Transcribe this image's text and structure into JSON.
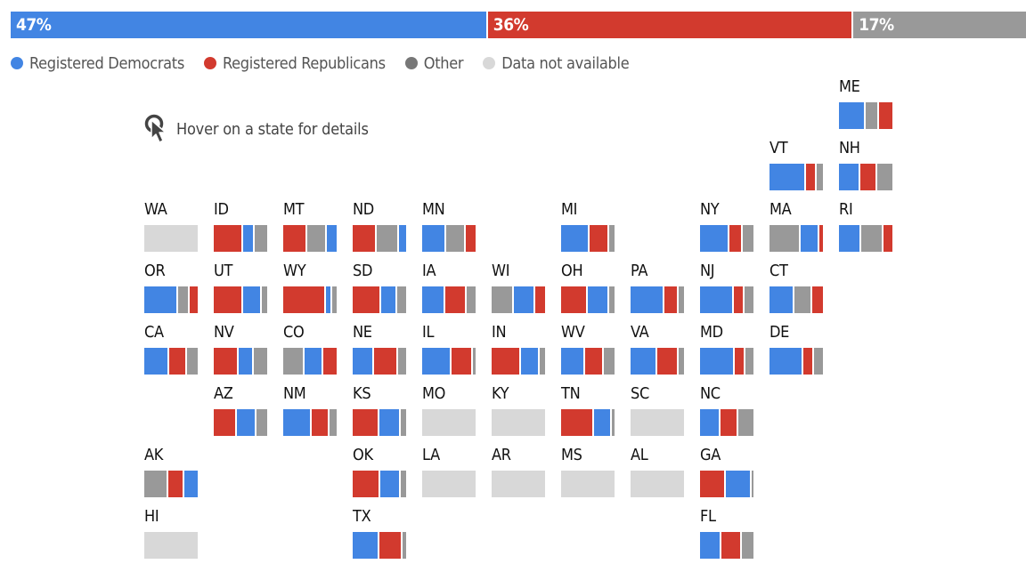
{
  "colors": {
    "democrats": "#4285e3",
    "republicans": "#d23a2e",
    "other": "#999999",
    "not_available": "#d8d8d8"
  },
  "chart_data": {
    "type": "bar",
    "summary": {
      "segments": [
        {
          "key": "democrats",
          "value": 47,
          "label": "47%"
        },
        {
          "key": "republicans",
          "value": 36,
          "label": "36%"
        },
        {
          "key": "other",
          "value": 17,
          "label": "17%"
        }
      ]
    },
    "legend": [
      {
        "key": "democrats",
        "label": "Registered Democrats"
      },
      {
        "key": "republicans",
        "label": "Registered Republicans"
      },
      {
        "key": "other",
        "label": "Other"
      },
      {
        "key": "not_available",
        "label": "Data not available"
      }
    ],
    "hover_hint": "Hover on a state for details",
    "states": [
      {
        "abbr": "ME",
        "col": 10,
        "row": 0,
        "segments": [
          [
            "democrats",
            50
          ],
          [
            "other",
            25
          ],
          [
            "republicans",
            25
          ]
        ]
      },
      {
        "abbr": "VT",
        "col": 9,
        "row": 1,
        "segments": [
          [
            "democrats",
            68
          ],
          [
            "republicans",
            20
          ],
          [
            "other",
            12
          ]
        ]
      },
      {
        "abbr": "NH",
        "col": 10,
        "row": 1,
        "segments": [
          [
            "democrats",
            40
          ],
          [
            "republicans",
            32
          ],
          [
            "other",
            28
          ]
        ]
      },
      {
        "abbr": "WA",
        "col": 0,
        "row": 2,
        "na": true
      },
      {
        "abbr": "ID",
        "col": 1,
        "row": 2,
        "segments": [
          [
            "republicans",
            55
          ],
          [
            "democrats",
            22
          ],
          [
            "other",
            23
          ]
        ]
      },
      {
        "abbr": "MT",
        "col": 2,
        "row": 2,
        "segments": [
          [
            "republicans",
            45
          ],
          [
            "other",
            37
          ],
          [
            "democrats",
            18
          ]
        ]
      },
      {
        "abbr": "ND",
        "col": 3,
        "row": 2,
        "segments": [
          [
            "republicans",
            45
          ],
          [
            "other",
            42
          ],
          [
            "democrats",
            13
          ]
        ]
      },
      {
        "abbr": "MN",
        "col": 4,
        "row": 2,
        "segments": [
          [
            "democrats",
            45
          ],
          [
            "other",
            37
          ],
          [
            "republicans",
            18
          ]
        ]
      },
      {
        "abbr": "MI",
        "col": 6,
        "row": 2,
        "segments": [
          [
            "democrats",
            53
          ],
          [
            "republicans",
            37
          ],
          [
            "other",
            10
          ]
        ]
      },
      {
        "abbr": "NY",
        "col": 8,
        "row": 2,
        "segments": [
          [
            "democrats",
            55
          ],
          [
            "republicans",
            25
          ],
          [
            "other",
            20
          ]
        ]
      },
      {
        "abbr": "MA",
        "col": 9,
        "row": 2,
        "segments": [
          [
            "other",
            58
          ],
          [
            "democrats",
            35
          ],
          [
            "republicans",
            7
          ]
        ]
      },
      {
        "abbr": "RI",
        "col": 10,
        "row": 2,
        "segments": [
          [
            "democrats",
            42
          ],
          [
            "other",
            42
          ],
          [
            "republicans",
            16
          ]
        ]
      },
      {
        "abbr": "OR",
        "col": 0,
        "row": 3,
        "segments": [
          [
            "democrats",
            63
          ],
          [
            "other",
            22
          ],
          [
            "republicans",
            15
          ]
        ]
      },
      {
        "abbr": "UT",
        "col": 1,
        "row": 3,
        "segments": [
          [
            "republicans",
            55
          ],
          [
            "democrats",
            35
          ],
          [
            "other",
            10
          ]
        ]
      },
      {
        "abbr": "WY",
        "col": 2,
        "row": 3,
        "segments": [
          [
            "republicans",
            80
          ],
          [
            "democrats",
            12
          ],
          [
            "other",
            8
          ]
        ]
      },
      {
        "abbr": "SD",
        "col": 3,
        "row": 3,
        "segments": [
          [
            "republicans",
            53
          ],
          [
            "democrats",
            30
          ],
          [
            "other",
            17
          ]
        ]
      },
      {
        "abbr": "IA",
        "col": 4,
        "row": 3,
        "segments": [
          [
            "democrats",
            43
          ],
          [
            "republicans",
            40
          ],
          [
            "other",
            17
          ]
        ]
      },
      {
        "abbr": "WI",
        "col": 5,
        "row": 3,
        "segments": [
          [
            "other",
            42
          ],
          [
            "democrats",
            40
          ],
          [
            "republicans",
            18
          ]
        ]
      },
      {
        "abbr": "OH",
        "col": 6,
        "row": 3,
        "segments": [
          [
            "republicans",
            50
          ],
          [
            "democrats",
            40
          ],
          [
            "other",
            10
          ]
        ]
      },
      {
        "abbr": "PA",
        "col": 7,
        "row": 3,
        "segments": [
          [
            "democrats",
            63
          ],
          [
            "republicans",
            27
          ],
          [
            "other",
            10
          ]
        ]
      },
      {
        "abbr": "NJ",
        "col": 8,
        "row": 3,
        "segments": [
          [
            "democrats",
            63
          ],
          [
            "republicans",
            20
          ],
          [
            "other",
            17
          ]
        ]
      },
      {
        "abbr": "CT",
        "col": 9,
        "row": 3,
        "segments": [
          [
            "democrats",
            47
          ],
          [
            "other",
            33
          ],
          [
            "republicans",
            20
          ]
        ]
      },
      {
        "abbr": "CA",
        "col": 0,
        "row": 4,
        "segments": [
          [
            "democrats",
            47
          ],
          [
            "republicans",
            33
          ],
          [
            "other",
            20
          ]
        ]
      },
      {
        "abbr": "NV",
        "col": 1,
        "row": 4,
        "segments": [
          [
            "republicans",
            47
          ],
          [
            "democrats",
            28
          ],
          [
            "other",
            25
          ]
        ]
      },
      {
        "abbr": "CO",
        "col": 2,
        "row": 4,
        "segments": [
          [
            "other",
            40
          ],
          [
            "democrats",
            35
          ],
          [
            "republicans",
            25
          ]
        ]
      },
      {
        "abbr": "NE",
        "col": 3,
        "row": 4,
        "segments": [
          [
            "democrats",
            40
          ],
          [
            "republicans",
            45
          ],
          [
            "other",
            15
          ]
        ]
      },
      {
        "abbr": "IL",
        "col": 4,
        "row": 4,
        "segments": [
          [
            "democrats",
            55
          ],
          [
            "republicans",
            40
          ],
          [
            "other",
            5
          ]
        ]
      },
      {
        "abbr": "IN",
        "col": 5,
        "row": 4,
        "segments": [
          [
            "republicans",
            55
          ],
          [
            "democrats",
            35
          ],
          [
            "other",
            10
          ]
        ]
      },
      {
        "abbr": "WV",
        "col": 6,
        "row": 4,
        "segments": [
          [
            "democrats",
            45
          ],
          [
            "republicans",
            35
          ],
          [
            "other",
            20
          ]
        ]
      },
      {
        "abbr": "VA",
        "col": 7,
        "row": 4,
        "segments": [
          [
            "democrats",
            50
          ],
          [
            "republicans",
            40
          ],
          [
            "other",
            10
          ]
        ]
      },
      {
        "abbr": "MD",
        "col": 8,
        "row": 4,
        "segments": [
          [
            "democrats",
            65
          ],
          [
            "republicans",
            20
          ],
          [
            "other",
            15
          ]
        ]
      },
      {
        "abbr": "DE",
        "col": 9,
        "row": 4,
        "segments": [
          [
            "democrats",
            63
          ],
          [
            "republicans",
            20
          ],
          [
            "other",
            17
          ]
        ]
      },
      {
        "abbr": "AZ",
        "col": 1,
        "row": 5,
        "segments": [
          [
            "republicans",
            43
          ],
          [
            "democrats",
            37
          ],
          [
            "other",
            20
          ]
        ]
      },
      {
        "abbr": "NM",
        "col": 2,
        "row": 5,
        "segments": [
          [
            "democrats",
            53
          ],
          [
            "republicans",
            33
          ],
          [
            "other",
            14
          ]
        ]
      },
      {
        "abbr": "KS",
        "col": 3,
        "row": 5,
        "segments": [
          [
            "republicans",
            50
          ],
          [
            "democrats",
            40
          ],
          [
            "other",
            10
          ]
        ]
      },
      {
        "abbr": "MO",
        "col": 4,
        "row": 5,
        "na": true
      },
      {
        "abbr": "KY",
        "col": 5,
        "row": 5,
        "na": true
      },
      {
        "abbr": "TN",
        "col": 6,
        "row": 5,
        "segments": [
          [
            "republicans",
            62
          ],
          [
            "democrats",
            33
          ],
          [
            "other",
            5
          ]
        ]
      },
      {
        "abbr": "SC",
        "col": 7,
        "row": 5,
        "na": true
      },
      {
        "abbr": "NC",
        "col": 8,
        "row": 5,
        "segments": [
          [
            "democrats",
            38
          ],
          [
            "republicans",
            33
          ],
          [
            "other",
            29
          ]
        ]
      },
      {
        "abbr": "AK",
        "col": 0,
        "row": 6,
        "segments": [
          [
            "other",
            45
          ],
          [
            "republicans",
            30
          ],
          [
            "democrats",
            25
          ]
        ]
      },
      {
        "abbr": "OK",
        "col": 3,
        "row": 6,
        "segments": [
          [
            "republicans",
            52
          ],
          [
            "democrats",
            38
          ],
          [
            "other",
            10
          ]
        ]
      },
      {
        "abbr": "LA",
        "col": 4,
        "row": 6,
        "na": true
      },
      {
        "abbr": "AR",
        "col": 5,
        "row": 6,
        "na": true
      },
      {
        "abbr": "MS",
        "col": 6,
        "row": 6,
        "na": true
      },
      {
        "abbr": "AL",
        "col": 7,
        "row": 6,
        "na": true
      },
      {
        "abbr": "GA",
        "col": 8,
        "row": 6,
        "segments": [
          [
            "republicans",
            48
          ],
          [
            "democrats",
            48
          ],
          [
            "other",
            4
          ]
        ]
      },
      {
        "abbr": "HI",
        "col": 0,
        "row": 7,
        "na": true
      },
      {
        "abbr": "TX",
        "col": 3,
        "row": 7,
        "segments": [
          [
            "democrats",
            50
          ],
          [
            "republicans",
            43
          ],
          [
            "other",
            7
          ]
        ]
      },
      {
        "abbr": "FL",
        "col": 8,
        "row": 7,
        "segments": [
          [
            "democrats",
            40
          ],
          [
            "republicans",
            38
          ],
          [
            "other",
            22
          ]
        ]
      }
    ]
  }
}
